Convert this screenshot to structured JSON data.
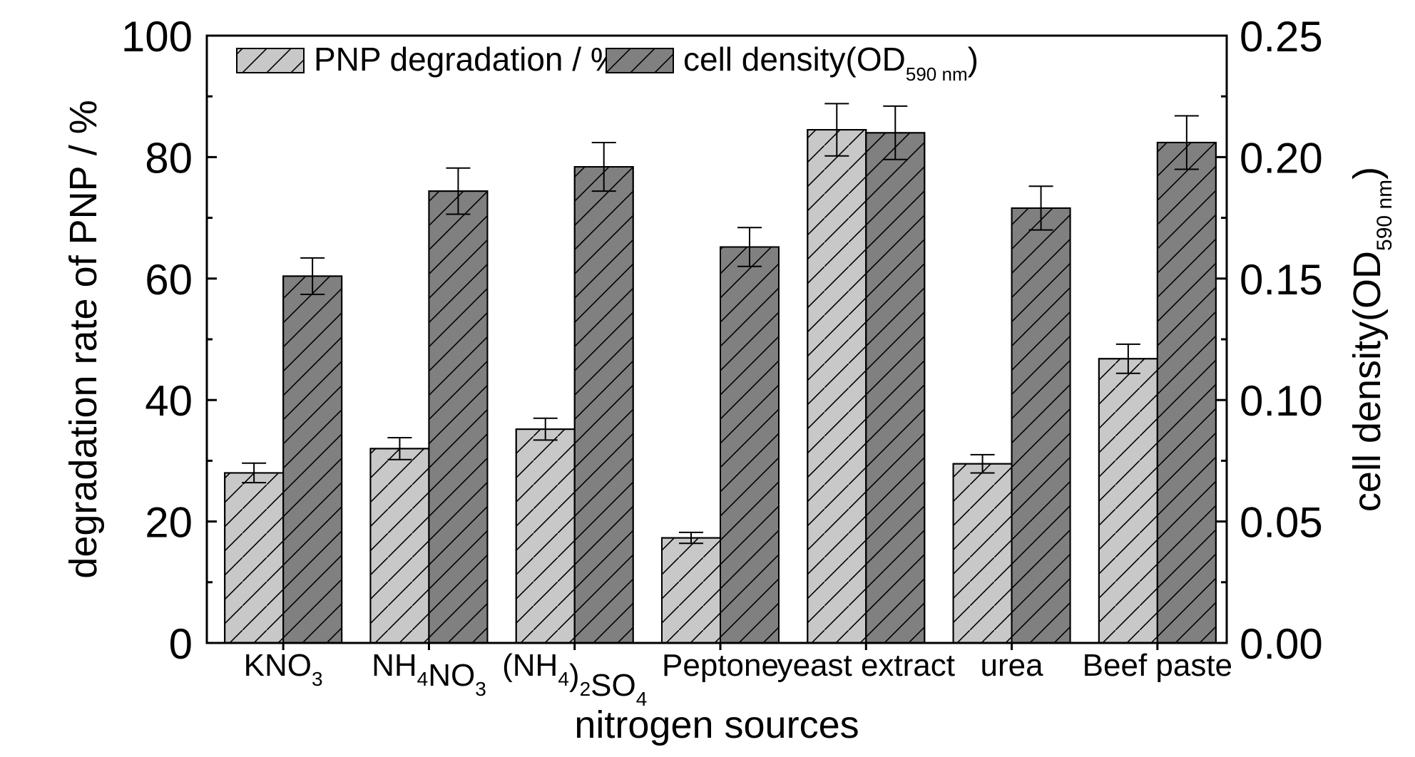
{
  "chart_data": {
    "type": "bar",
    "xlabel": "nitrogen sources",
    "ylabel_left": "degradation rate of PNP / %",
    "ylabel_right": {
      "main": "cell density(OD",
      "sub": "590 nm",
      "tail": ")"
    },
    "ylim_left": [
      0,
      100
    ],
    "ylim_right": [
      0,
      0.25
    ],
    "yticks_left": [
      "0",
      "20",
      "40",
      "60",
      "80",
      "100"
    ],
    "yticks_right": [
      "0.00",
      "0.05",
      "0.10",
      "0.15",
      "0.20",
      "0.25"
    ],
    "categories": [
      {
        "main": "KNO",
        "sub": "3"
      },
      {
        "main": "NH",
        "sub": "4",
        "main2": "NO",
        "sub2": "3"
      },
      {
        "main": "(NH",
        "sub": "4",
        "main2": ")",
        "sub2": "2",
        "main3": "SO",
        "sub3": "4"
      },
      {
        "main": "Peptone"
      },
      {
        "main": "yeast extract"
      },
      {
        "main": "urea"
      },
      {
        "main": "Beef paste"
      }
    ],
    "series": [
      {
        "name": "PNP degradation / %",
        "axis": "left",
        "color": "#c8c8c8",
        "hatch": "backslash",
        "values": [
          28.0,
          32.0,
          35.2,
          17.3,
          84.5,
          29.5,
          46.8
        ],
        "errors": [
          1.6,
          1.8,
          1.8,
          0.9,
          4.3,
          1.5,
          2.4
        ]
      },
      {
        "name": "cell density(OD",
        "name_sub": "590 nm",
        "name_tail": ")",
        "axis": "right",
        "color": "#808080",
        "hatch": "slash",
        "values": [
          0.151,
          0.186,
          0.196,
          0.163,
          0.21,
          0.179,
          0.206
        ],
        "errors": [
          0.0075,
          0.0095,
          0.01,
          0.008,
          0.011,
          0.009,
          0.011
        ]
      }
    ],
    "legend": "top-left"
  }
}
